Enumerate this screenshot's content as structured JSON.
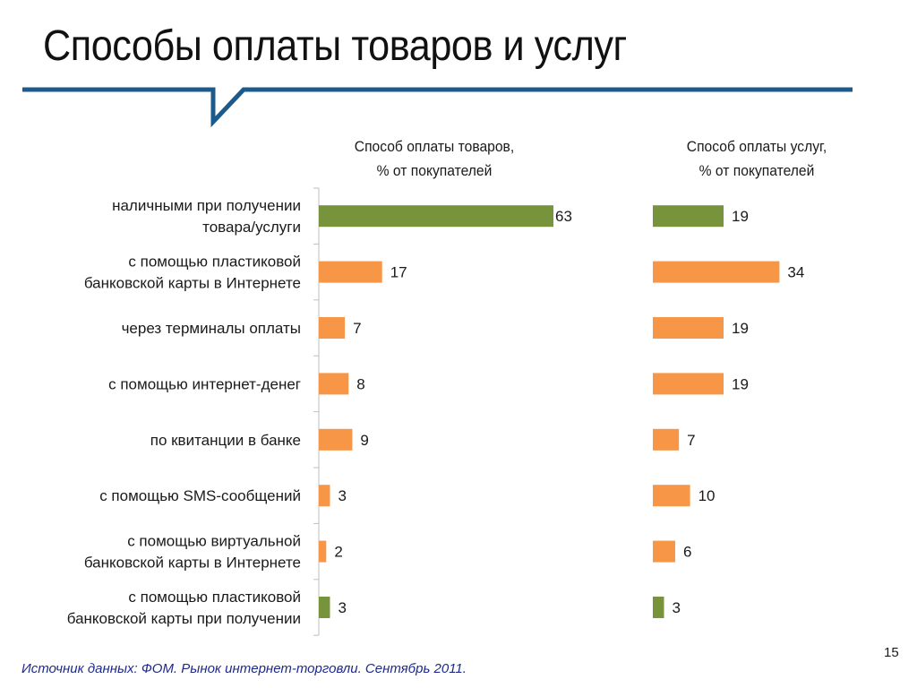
{
  "slide": {
    "title": "Способы оплаты товаров и услуг",
    "source": "Источник данных: ФОМ. Рынок интернет-торговли. Сентябрь 2011.",
    "page_number": "15"
  },
  "colors": {
    "accent_rule": "#1c5a8c",
    "bar_green": "#77933c",
    "bar_orange": "#f79646"
  },
  "chart_data": {
    "type": "bar",
    "orientation": "horizontal",
    "categories": [
      [
        "наличными при получении",
        "товара/услуги"
      ],
      [
        "с помощью пластиковой",
        "банковской карты в Интернете"
      ],
      [
        "через терминалы оплаты"
      ],
      [
        "с помощью интернет-денег"
      ],
      [
        "по квитанции в банке"
      ],
      [
        "с помощью SMS-сообщений"
      ],
      [
        "с помощью виртуальной",
        "банковской карты в Интернете"
      ],
      [
        "с помощью пластиковой",
        "банковской карты при получении"
      ]
    ],
    "bar_colors": [
      "green",
      "orange",
      "orange",
      "orange",
      "orange",
      "orange",
      "orange",
      "green"
    ],
    "series": [
      {
        "title_lines": [
          "Способ оплаты товаров,",
          "% от покупателей"
        ],
        "values": [
          63,
          17,
          7,
          8,
          9,
          3,
          2,
          3
        ]
      },
      {
        "title_lines": [
          "Способ оплаты услуг,",
          "% от покупателей"
        ],
        "values": [
          19,
          34,
          19,
          19,
          7,
          10,
          6,
          3
        ]
      }
    ],
    "xlim": [
      0,
      63
    ],
    "grid": false,
    "legend": "none"
  }
}
